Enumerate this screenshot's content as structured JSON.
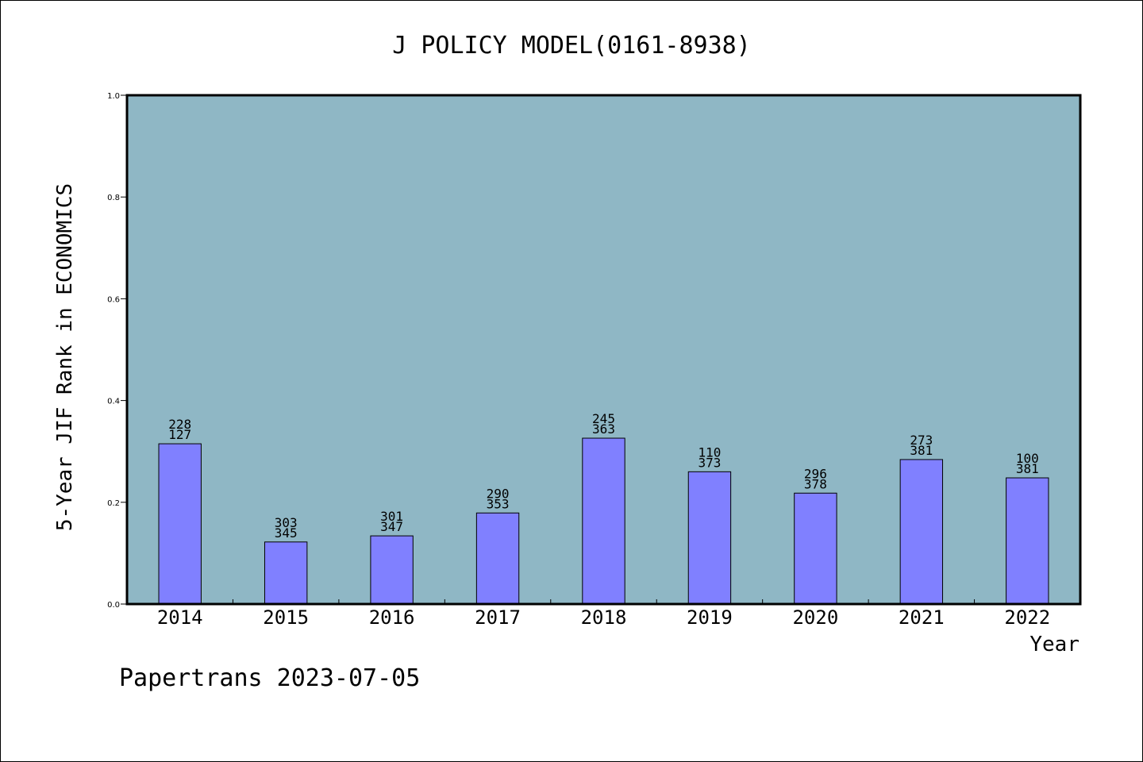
{
  "chart_data": {
    "type": "bar",
    "title": "J POLICY MODEL(0161-8938)",
    "xlabel": "Year",
    "ylabel": "5-Year JIF Rank in ECONOMICS",
    "ylim": [
      0,
      1.0
    ],
    "yticks": [
      "0.0",
      "0.2",
      "0.4",
      "0.6",
      "0.8",
      "1.0"
    ],
    "categories": [
      "2014",
      "2015",
      "2016",
      "2017",
      "2018",
      "2019",
      "2020",
      "2021",
      "2022"
    ],
    "values": [
      0.315,
      0.122,
      0.134,
      0.179,
      0.326,
      0.26,
      0.218,
      0.284,
      0.248
    ],
    "rank": [
      "127",
      "345",
      "347",
      "353",
      "363",
      "373",
      "378",
      "381",
      "381"
    ],
    "position": [
      "228",
      "303",
      "301",
      "290",
      "245",
      "110",
      "296",
      "273",
      "100"
    ],
    "grid": false,
    "colors": {
      "plot_bg": "#8fb7c5",
      "bar": "#8080ff",
      "axis": "#000000"
    }
  },
  "footer": "Papertrans 2023-07-05"
}
